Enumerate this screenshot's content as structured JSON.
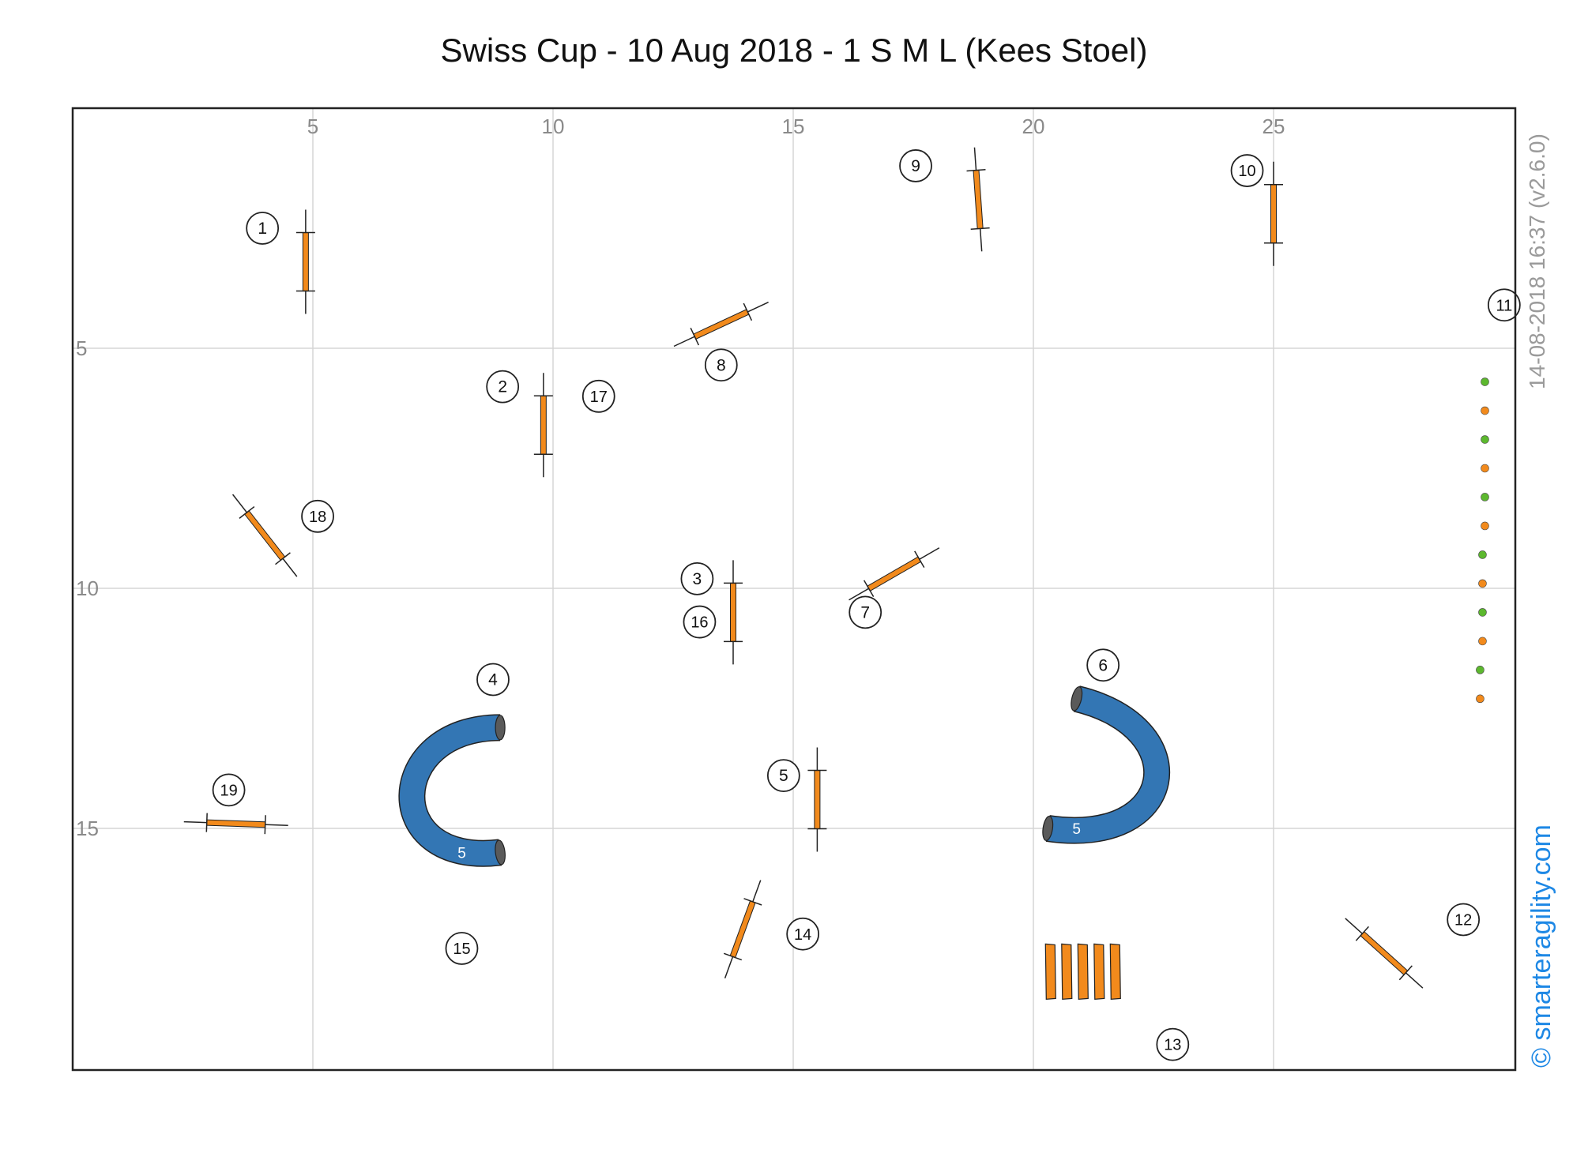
{
  "title": "Swiss Cup - 10 Aug 2018 - 1 S M L (Kees Stoel)",
  "timestamp": "14-08-2018 16:37  (v2.6.0)",
  "copyright": "© smarteragility.com",
  "colors": {
    "bar": "#f28a1c",
    "tunnel": "#3376b4",
    "tunnel_end": "#5a5a5a",
    "grid": "#d6d6d6",
    "frame": "#222222",
    "dot_green": "#5cb82e",
    "dot_orange": "#f28a1c"
  },
  "field": {
    "x_ticks": [
      {
        "value": 5,
        "label": "5"
      },
      {
        "value": 10,
        "label": "10"
      },
      {
        "value": 15,
        "label": "15"
      },
      {
        "value": 20,
        "label": "20"
      },
      {
        "value": 25,
        "label": "25"
      }
    ],
    "y_ticks": [
      {
        "value": 5,
        "label": "5"
      },
      {
        "value": 10,
        "label": "10"
      },
      {
        "value": 15,
        "label": "15"
      }
    ]
  },
  "jumps": [
    {
      "name": "jump-1",
      "x": 4.85,
      "y": 3.2,
      "angle": 90
    },
    {
      "name": "jump-2",
      "x": 9.8,
      "y": 6.6,
      "angle": 90
    },
    {
      "name": "jump-3",
      "x": 13.75,
      "y": 10.5,
      "angle": 90
    },
    {
      "name": "jump-5",
      "x": 15.5,
      "y": 14.4,
      "angle": 90
    },
    {
      "name": "jump-7",
      "x": 17.1,
      "y": 9.7,
      "angle": -30
    },
    {
      "name": "jump-8",
      "x": 13.5,
      "y": 4.5,
      "angle": -25
    },
    {
      "name": "jump-9",
      "x": 18.85,
      "y": 1.9,
      "angle": 86
    },
    {
      "name": "jump-10",
      "x": 25.0,
      "y": 2.2,
      "angle": 90
    },
    {
      "name": "jump-12",
      "x": 27.3,
      "y": 17.6,
      "angle": 42
    },
    {
      "name": "jump-14",
      "x": 13.95,
      "y": 17.1,
      "angle": -70
    },
    {
      "name": "jump-18",
      "x": 4.0,
      "y": 8.9,
      "angle": 52
    },
    {
      "name": "jump-19",
      "x": 3.4,
      "y": 14.9,
      "angle": 2
    }
  ],
  "tunnels": [
    {
      "name": "tunnel-4",
      "path": [
        [
          8.9,
          12.9
        ],
        [
          6.5,
          12.9
        ],
        [
          6.4,
          15.8
        ],
        [
          8.9,
          15.5
        ]
      ],
      "label": "5",
      "label_pos": [
        8.1,
        15.5
      ]
    },
    {
      "name": "tunnel-6",
      "path": [
        [
          20.9,
          12.3
        ],
        [
          23.4,
          12.9
        ],
        [
          23.0,
          15.4
        ],
        [
          20.3,
          15.0
        ]
      ],
      "label": "5",
      "label_pos": [
        20.9,
        15.0
      ]
    }
  ],
  "weave": {
    "name": "weave-13",
    "x": 20.35,
    "y": 18.0,
    "poles": 5
  },
  "dots": [
    {
      "x": 29.4,
      "y": 5.7,
      "color": "green"
    },
    {
      "x": 29.4,
      "y": 6.3,
      "color": "orange"
    },
    {
      "x": 29.4,
      "y": 6.9,
      "color": "green"
    },
    {
      "x": 29.4,
      "y": 7.5,
      "color": "orange"
    },
    {
      "x": 29.4,
      "y": 8.1,
      "color": "green"
    },
    {
      "x": 29.4,
      "y": 8.7,
      "color": "orange"
    },
    {
      "x": 29.35,
      "y": 9.3,
      "color": "green"
    },
    {
      "x": 29.35,
      "y": 9.9,
      "color": "orange"
    },
    {
      "x": 29.35,
      "y": 10.5,
      "color": "green"
    },
    {
      "x": 29.35,
      "y": 11.1,
      "color": "orange"
    },
    {
      "x": 29.3,
      "y": 11.7,
      "color": "green"
    },
    {
      "x": 29.3,
      "y": 12.3,
      "color": "orange"
    }
  ],
  "markers": [
    {
      "num": "1",
      "x": 3.95,
      "y": 2.5
    },
    {
      "num": "2",
      "x": 8.95,
      "y": 5.8
    },
    {
      "num": "3",
      "x": 13.0,
      "y": 9.8
    },
    {
      "num": "4",
      "x": 8.75,
      "y": 11.9
    },
    {
      "num": "5",
      "x": 14.8,
      "y": 13.9
    },
    {
      "num": "6",
      "x": 21.45,
      "y": 11.6
    },
    {
      "num": "7",
      "x": 16.5,
      "y": 10.5
    },
    {
      "num": "8",
      "x": 13.5,
      "y": 5.35
    },
    {
      "num": "9",
      "x": 17.55,
      "y": 1.2
    },
    {
      "num": "10",
      "x": 24.45,
      "y": 1.3
    },
    {
      "num": "11",
      "x": 29.8,
      "y": 4.1
    },
    {
      "num": "12",
      "x": 28.95,
      "y": 16.9
    },
    {
      "num": "13",
      "x": 22.9,
      "y": 19.5
    },
    {
      "num": "14",
      "x": 15.2,
      "y": 17.2
    },
    {
      "num": "15",
      "x": 8.1,
      "y": 17.5
    },
    {
      "num": "16",
      "x": 13.05,
      "y": 10.7
    },
    {
      "num": "17",
      "x": 10.95,
      "y": 6.0
    },
    {
      "num": "18",
      "x": 5.1,
      "y": 8.5
    },
    {
      "num": "19",
      "x": 3.25,
      "y": 14.2
    }
  ]
}
